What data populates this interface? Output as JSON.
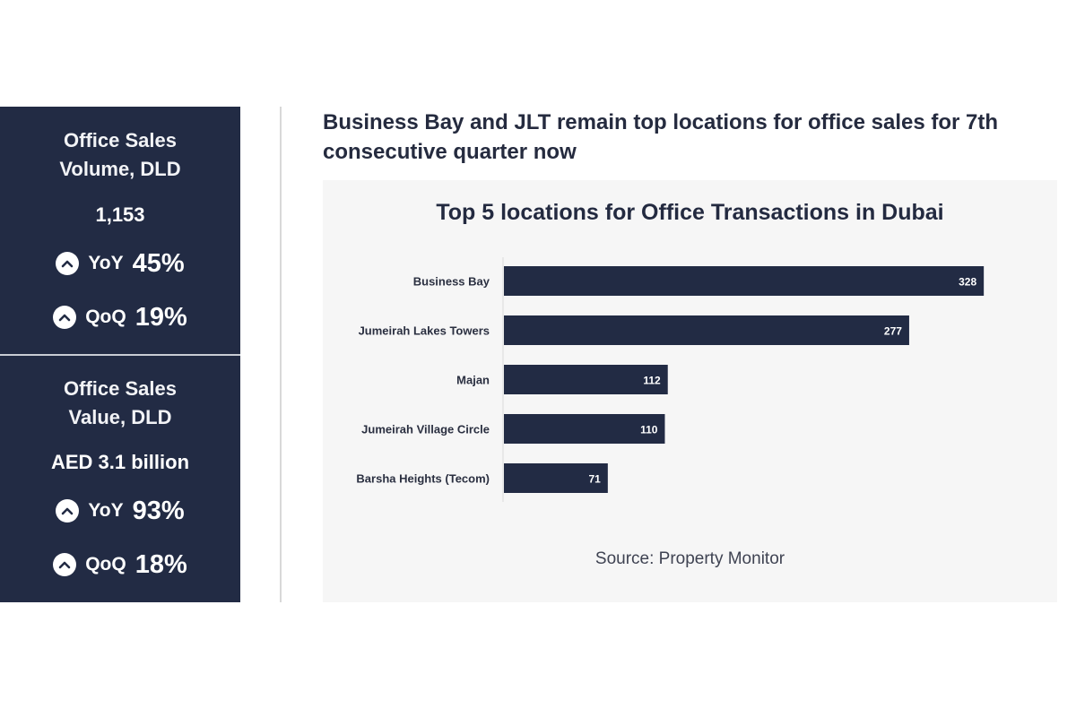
{
  "stats": [
    {
      "title_line1": "Office Sales",
      "title_line2": "Volume, DLD",
      "value": "1,153",
      "changes": [
        {
          "label": "YoY",
          "value": "45%"
        },
        {
          "label": "QoQ",
          "value": "19%"
        }
      ]
    },
    {
      "title_line1": "Office Sales",
      "title_line2": "Value, DLD",
      "value": "AED 3.1 billion",
      "changes": [
        {
          "label": "YoY",
          "value": "93%"
        },
        {
          "label": "QoQ",
          "value": "18%"
        }
      ]
    }
  ],
  "headline": "Business Bay and JLT remain top locations for office sales for 7th consecutive quarter now",
  "source": "Source: Property Monitor",
  "colors": {
    "panel": "#222b44",
    "bar": "#222b44",
    "card": "#f6f6f6"
  },
  "icons": {
    "change": "chevron-up-icon"
  },
  "chart_data": {
    "type": "bar",
    "orientation": "horizontal",
    "title": "Top 5 locations for Office Transactions in Dubai",
    "categories": [
      "Business Bay",
      "Jumeirah Lakes Towers",
      "Majan",
      "Jumeirah Village Circle",
      "Barsha Heights (Tecom)"
    ],
    "values": [
      328,
      277,
      112,
      110,
      71
    ],
    "xlim": [
      0,
      380
    ],
    "data_labels": true,
    "grid": false,
    "legend": "none"
  }
}
